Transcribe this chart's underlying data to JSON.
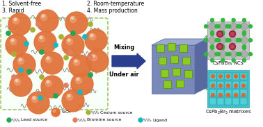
{
  "title_items": [
    "1. Solvent-free",
    "2. Room-temperature",
    "3. Rapid",
    "4. Mass production"
  ],
  "arrow_label1": "Mixing",
  "arrow_label2": "Under air",
  "label_cspbbr3": "CsPbBr$_3$ NCs",
  "label_cs2pbbr5": "CsPb$_2$Br$_5$ matrixes",
  "bg_color": "#ffffff",
  "orange_ball_color": "#E0733A",
  "orange_ball_highlight": "#F0A878",
  "arrow_color": "#2A3F8F",
  "dashed_box_color": "#90BB50",
  "cube_front": "#7888B8",
  "cube_top": "#9AAAD0",
  "cube_right": "#5868A0",
  "green_nc_color": "#88CC22",
  "green_nc_edge": "#558800",
  "wave_color": "#888888",
  "cs_color": "#A8B030",
  "pb_color": "#22A855",
  "br_color": "#E08060",
  "lig_color": "#18B8C0",
  "cspbbr3_bg": "#C0C0C0",
  "cspbbr3_oct": "#B0B0B0",
  "cspbbr3_cs": "#A02040",
  "cspbbr3_br": "#30B840",
  "cs2pbbr5_bg": "#40C0C8",
  "cs2pbbr5_oct": "#30B0B8",
  "cs2pbbr5_orange": "#E06830",
  "line_green": "#70A870"
}
